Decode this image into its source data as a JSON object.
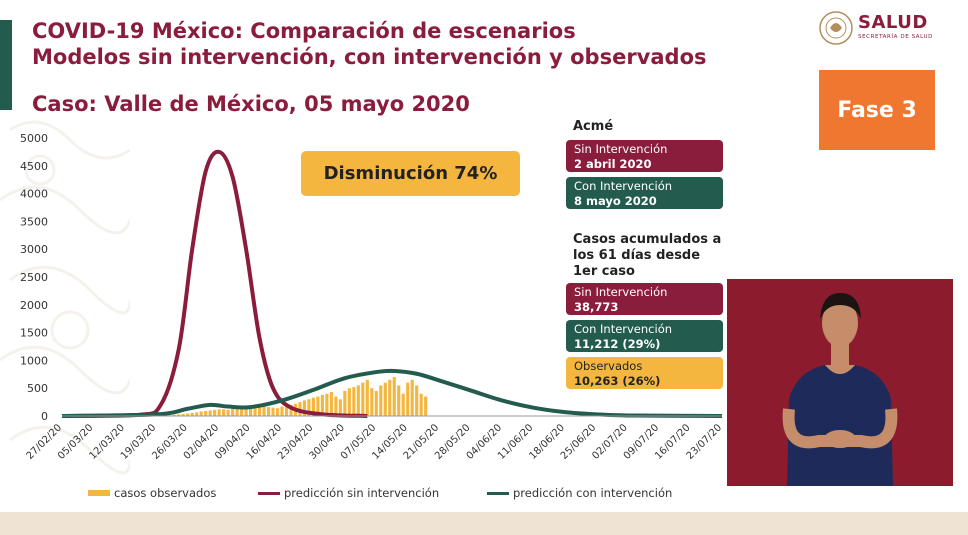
{
  "header": {
    "title_line1": "COVID-19 México: Comparación de escenarios",
    "title_line2": "Modelos sin intervención, con intervención y observados",
    "subtitle": "Caso: Valle de México, 05 mayo 2020"
  },
  "logo": {
    "text": "SALUD",
    "subtext": "SECRETARÍA DE SALUD"
  },
  "badge": {
    "label": "Fase 3"
  },
  "callout": {
    "label": "Disminución 74%"
  },
  "acme": {
    "heading": "Acmé",
    "sin": {
      "label": "Sin Intervención",
      "value": "2 abril 2020"
    },
    "con": {
      "label": "Con Intervención",
      "value": "8 mayo 2020"
    }
  },
  "acumulados": {
    "heading": "Casos acumulados a los 61 días desde 1er caso",
    "sin": {
      "label": "Sin Intervención",
      "value": "38,773"
    },
    "con": {
      "label": "Con Intervención",
      "value": "11,212 (29%)"
    },
    "obs": {
      "label": "Observados",
      "value": "10,263 (26%)"
    }
  },
  "colors": {
    "wine": "#8a1c3c",
    "green": "#235b4e",
    "gold": "#f4b63f",
    "orange": "#f0772f"
  },
  "chart_data": {
    "type": "bar",
    "x": [
      "27/02/20",
      "05/03/20",
      "12/03/20",
      "19/03/20",
      "26/03/20",
      "02/04/20",
      "09/04/20",
      "16/04/20",
      "23/04/20",
      "30/04/20",
      "07/05/20",
      "14/05/20",
      "21/05/20",
      "28/05/20",
      "04/06/20",
      "11/06/20",
      "18/06/20",
      "25/06/20",
      "02/07/20",
      "09/07/20",
      "16/07/20",
      "23/07/20"
    ],
    "ylim": [
      0,
      5000
    ],
    "yticks": [
      0,
      500,
      1000,
      1500,
      2000,
      2500,
      3000,
      3500,
      4000,
      4500,
      5000
    ],
    "grid": false,
    "legend_position": "bottom",
    "observed": {
      "name": "casos observados",
      "start_date": "20/03/20",
      "values": [
        5,
        10,
        15,
        20,
        30,
        35,
        45,
        55,
        65,
        80,
        90,
        100,
        110,
        120,
        120,
        110,
        130,
        140,
        120,
        130,
        150,
        160,
        170,
        180,
        160,
        150,
        140,
        170,
        190,
        200,
        220,
        250,
        280,
        300,
        330,
        350,
        380,
        400,
        430,
        350,
        300,
        450,
        500,
        520,
        550,
        600,
        650,
        500,
        450,
        550,
        600,
        650,
        700,
        550,
        400,
        600,
        650,
        550,
        400,
        350
      ]
    },
    "series": [
      {
        "name": "predicción sin intervención",
        "points": [
          [
            "27/02/20",
            0
          ],
          [
            "15/03/20",
            20
          ],
          [
            "20/03/20",
            200
          ],
          [
            "24/03/20",
            1200
          ],
          [
            "27/03/20",
            3000
          ],
          [
            "30/03/20",
            4400
          ],
          [
            "02/04/20",
            4750
          ],
          [
            "05/04/20",
            4300
          ],
          [
            "08/04/20",
            3000
          ],
          [
            "11/04/20",
            1400
          ],
          [
            "14/04/20",
            500
          ],
          [
            "18/04/20",
            150
          ],
          [
            "25/04/20",
            30
          ],
          [
            "05/05/20",
            0
          ]
        ]
      },
      {
        "name": "predicción con intervención",
        "points": [
          [
            "27/02/20",
            0
          ],
          [
            "19/03/20",
            30
          ],
          [
            "26/03/20",
            130
          ],
          [
            "31/03/20",
            200
          ],
          [
            "04/04/20",
            170
          ],
          [
            "09/04/20",
            160
          ],
          [
            "16/04/20",
            280
          ],
          [
            "23/04/20",
            470
          ],
          [
            "30/04/20",
            680
          ],
          [
            "07/05/20",
            790
          ],
          [
            "11/05/20",
            810
          ],
          [
            "16/05/20",
            760
          ],
          [
            "21/05/20",
            640
          ],
          [
            "28/05/20",
            460
          ],
          [
            "04/06/20",
            280
          ],
          [
            "11/06/20",
            150
          ],
          [
            "18/06/20",
            70
          ],
          [
            "25/06/20",
            30
          ],
          [
            "02/07/20",
            10
          ],
          [
            "23/07/20",
            0
          ]
        ]
      }
    ]
  }
}
